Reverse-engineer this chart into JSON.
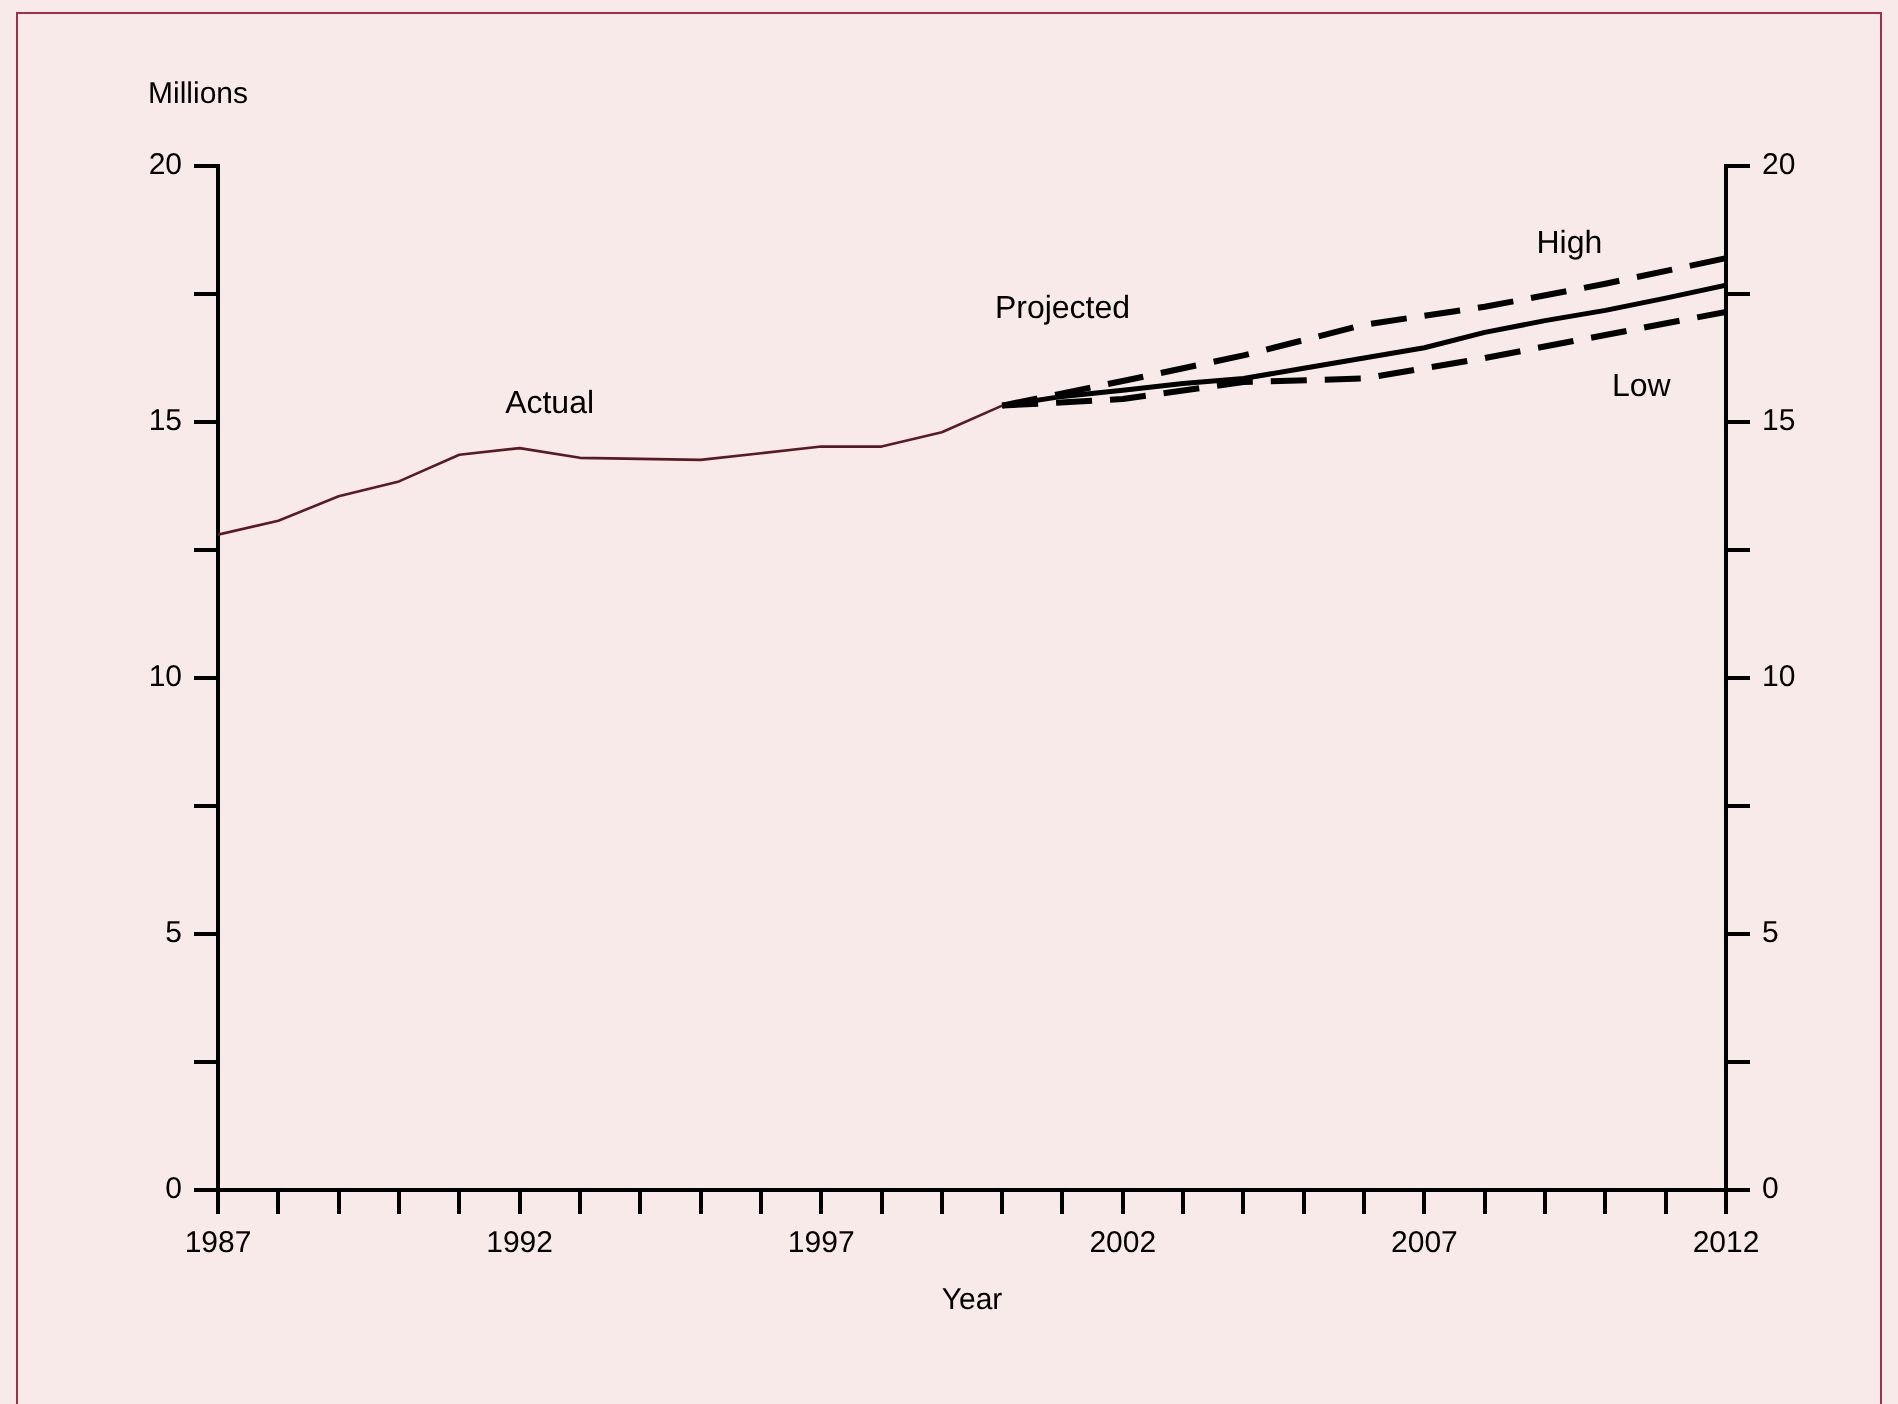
{
  "chart_data": {
    "type": "line",
    "xlabel": "Year",
    "ylabel": "Millions",
    "xlim": [
      1987,
      2012
    ],
    "xticks": [
      1987,
      {
        "value": 1988,
        "label": null
      },
      {
        "value": 1989,
        "label": null
      },
      {
        "value": 1990,
        "label": null
      },
      {
        "value": 1991,
        "label": null
      },
      1992,
      {
        "value": 1993,
        "label": null
      },
      {
        "value": 1994,
        "label": null
      },
      {
        "value": 1995,
        "label": null
      },
      {
        "value": 1996,
        "label": null
      },
      1997,
      {
        "value": 1998,
        "label": null
      },
      {
        "value": 1999,
        "label": null
      },
      {
        "value": 2000,
        "label": null
      },
      {
        "value": 2001,
        "label": null
      },
      2002,
      {
        "value": 2003,
        "label": null
      },
      {
        "value": 2004,
        "label": null
      },
      {
        "value": 2005,
        "label": null
      },
      {
        "value": 2006,
        "label": null
      },
      2007,
      {
        "value": 2008,
        "label": null
      },
      {
        "value": 2009,
        "label": null
      },
      {
        "value": 2010,
        "label": null
      },
      {
        "value": 2011,
        "label": null
      },
      2012
    ],
    "ylim": [
      0,
      20
    ],
    "yticks": [
      0,
      {
        "value": 2.5,
        "label": null
      },
      5,
      {
        "value": 7.5,
        "label": null
      },
      10,
      {
        "value": 12.5,
        "label": null
      },
      15,
      {
        "value": 17.5,
        "label": null
      },
      20
    ],
    "y2lim": [
      0,
      20
    ],
    "y2ticks": [
      0,
      {
        "value": 2.5,
        "label": null
      },
      5,
      {
        "value": 7.5,
        "label": null
      },
      10,
      {
        "value": 12.5,
        "label": null
      },
      15,
      {
        "value": 17.5,
        "label": null
      },
      20
    ],
    "grid": false,
    "legend": false,
    "marker": "none",
    "series": [
      {
        "name": "Actual",
        "color": "#5a1a24",
        "line_style": "solid",
        "x": [
          1987,
          1988,
          1989,
          1990,
          1991,
          1992,
          1993,
          1994,
          1995,
          1996,
          1997,
          1998,
          1999,
          2000
        ],
        "values": [
          12.8,
          13.07,
          13.55,
          13.84,
          14.36,
          14.49,
          14.3,
          14.28,
          14.26,
          14.39,
          14.52,
          14.52,
          14.8,
          15.32
        ]
      },
      {
        "color": "#000000",
        "line_style": "solid",
        "x": [
          2000,
          2001,
          2002,
          2003,
          2004,
          2005,
          2006,
          2007,
          2008,
          2009,
          2010,
          2011,
          2012
        ],
        "values": [
          15.32,
          15.5,
          15.62,
          15.75,
          15.85,
          16.05,
          16.25,
          16.45,
          16.75,
          16.98,
          17.18,
          17.42,
          17.67
        ]
      },
      {
        "name": "High",
        "color": "#000000",
        "line_style": "dashed",
        "x": [
          2000,
          2002,
          2004,
          2006,
          2008,
          2010,
          2012
        ],
        "values": [
          15.32,
          15.8,
          16.3,
          16.9,
          17.25,
          17.7,
          18.2
        ]
      },
      {
        "name": "Low",
        "color": "#000000",
        "line_style": "dashed",
        "x": [
          2000,
          2002,
          2004,
          2006,
          2008,
          2010,
          2012
        ],
        "values": [
          15.32,
          15.45,
          15.78,
          15.85,
          16.25,
          16.7,
          17.15
        ]
      }
    ],
    "annotations": [
      "Projected"
    ]
  }
}
